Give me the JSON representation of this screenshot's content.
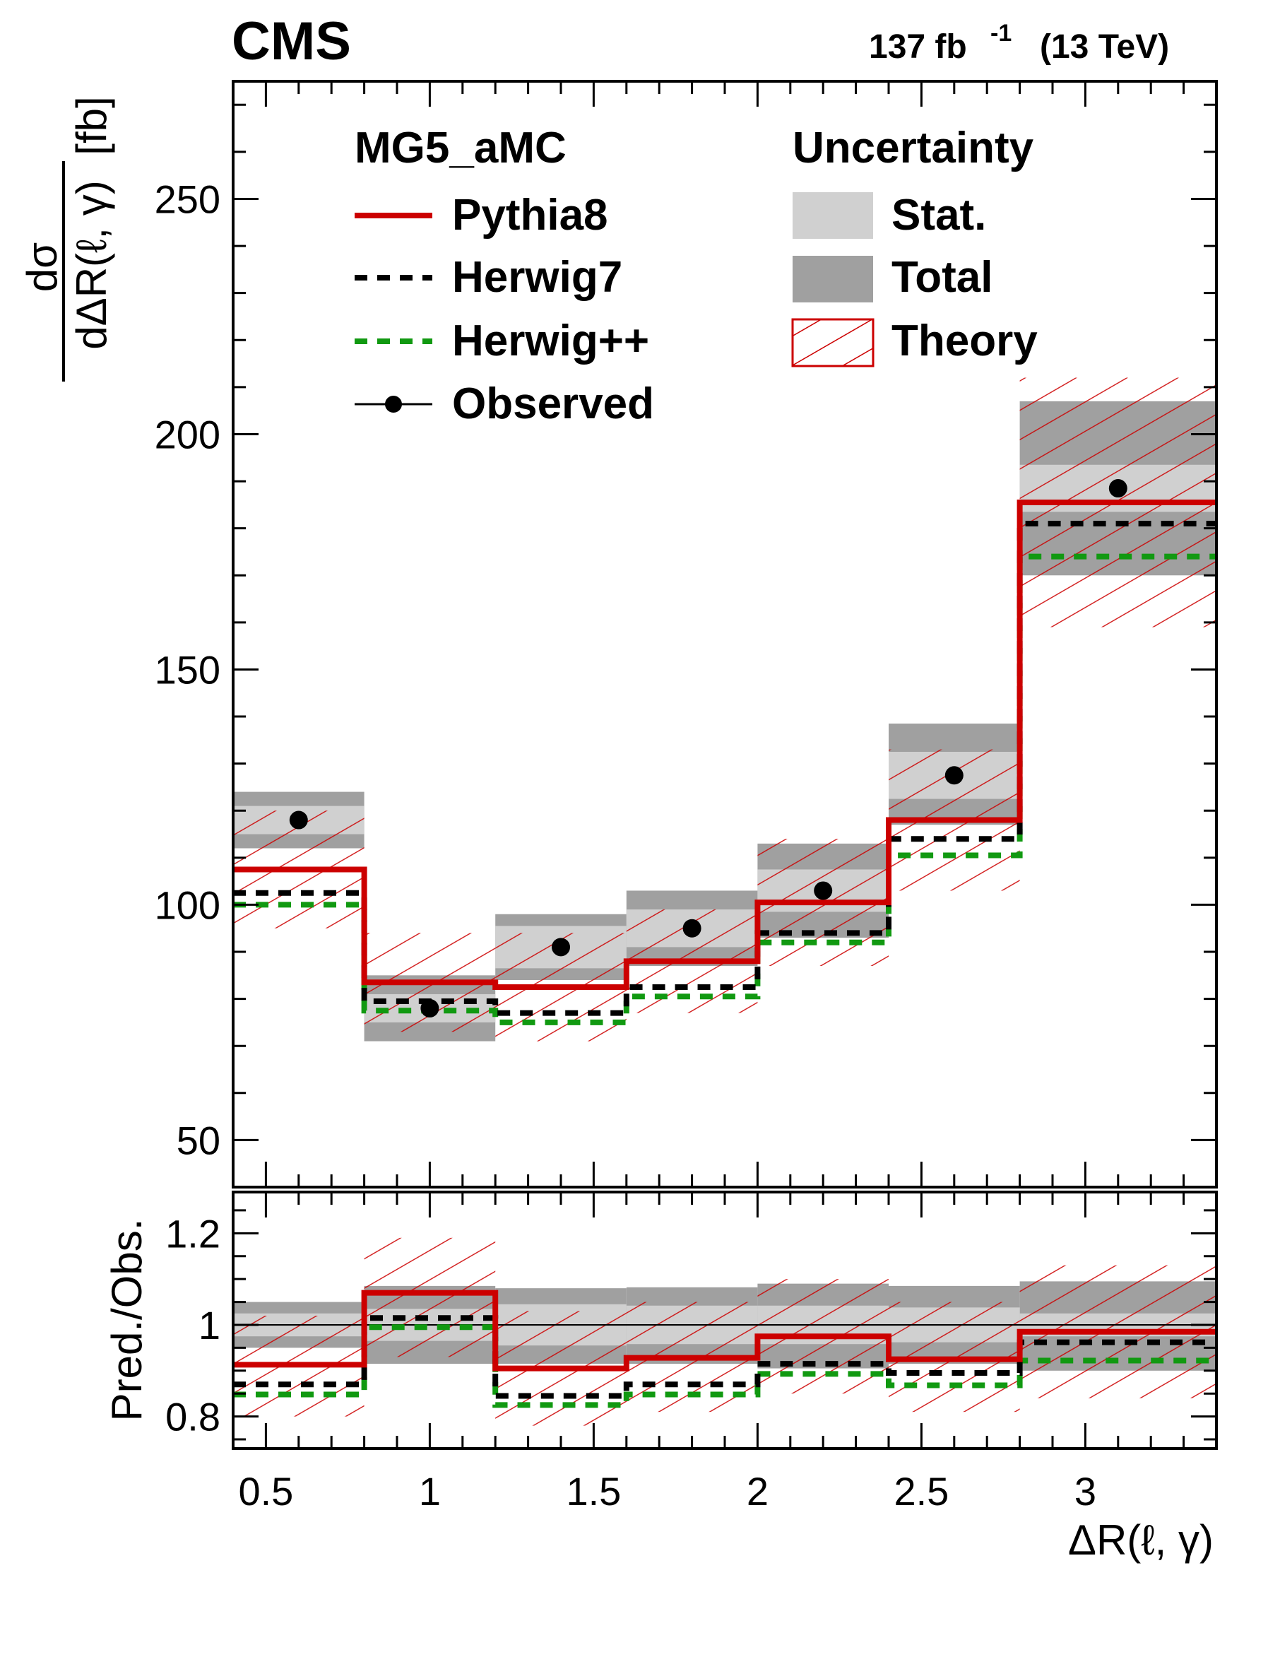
{
  "figure": {
    "experiment_label": "CMS",
    "lumi_label": "137 fb",
    "lumi_sup": "-1",
    "energy_label": "(13 TeV)"
  },
  "legend": {
    "generator_header": "MG5_aMC",
    "uncertainty_header": "Uncertainty",
    "entries": {
      "pythia": "Pythia8",
      "herwig7": "Herwig7",
      "herwigpp": "Herwig++",
      "observed": "Observed",
      "stat": "Stat.",
      "total": "Total",
      "theory": "Theory"
    }
  },
  "colors": {
    "pythia": "#cc0000",
    "herwig7": "#000000",
    "herwigpp": "#119911",
    "stat_band": "#d0d0d0",
    "total_band": "#a0a0a0",
    "theory_hatch": "#cc0000"
  },
  "chart_data": [
    {
      "type": "line",
      "panel": "main",
      "ylabel_numerator": "dσ",
      "ylabel_denominator": "dΔR(ℓ, γ)",
      "ylabel_unit": "[fb]",
      "xlim": [
        0.4,
        3.4
      ],
      "ylim": [
        40,
        275
      ],
      "yticks": [
        50,
        100,
        150,
        200,
        250
      ],
      "bin_edges": [
        0.4,
        0.8,
        1.2,
        1.6,
        2.0,
        2.4,
        2.8,
        3.4
      ],
      "observed": [
        118,
        78,
        91,
        95,
        103,
        127.5,
        188.5
      ],
      "stat_band": [
        [
          115,
          121
        ],
        [
          75,
          81
        ],
        [
          86.5,
          95.5
        ],
        [
          91,
          99
        ],
        [
          98.5,
          107.5
        ],
        [
          122.5,
          132.5
        ],
        [
          183.5,
          193.5
        ]
      ],
      "total_band": [
        [
          112,
          124
        ],
        [
          71,
          85
        ],
        [
          84,
          98
        ],
        [
          87,
          103
        ],
        [
          93,
          113
        ],
        [
          117,
          138.5
        ],
        [
          170,
          207
        ]
      ],
      "series": [
        {
          "name": "Pythia8",
          "style": "solid",
          "values": [
            107.5,
            83.5,
            82.5,
            88,
            100.5,
            118,
            185.5
          ],
          "theory_band": [
            [
              95,
              120
            ],
            [
              73,
              94
            ],
            [
              71,
              94
            ],
            [
              77,
              99
            ],
            [
              87,
              114
            ],
            [
              103,
              133
            ],
            [
              159,
              212
            ]
          ]
        },
        {
          "name": "Herwig7",
          "style": "dashed",
          "values": [
            102.5,
            79.5,
            77,
            82.5,
            94,
            114,
            181
          ]
        },
        {
          "name": "Herwig++",
          "style": "dashed",
          "values": [
            100,
            77.5,
            75,
            80.5,
            92,
            110.5,
            174
          ]
        }
      ]
    },
    {
      "type": "line",
      "panel": "ratio",
      "ylabel": "Pred./Obs.",
      "xlabel": "ΔR(ℓ, γ)",
      "xlim": [
        0.4,
        3.4
      ],
      "ylim": [
        0.73,
        1.29
      ],
      "yticks": [
        0.8,
        1,
        1.2
      ],
      "ytick_labels": [
        "0.8",
        "1",
        "1.2"
      ],
      "xticks": [
        0.5,
        1,
        1.5,
        2,
        2.5,
        3
      ],
      "xtick_labels": [
        "0.5",
        "1",
        "1.5",
        "2",
        "2.5",
        "3"
      ],
      "bin_edges": [
        0.4,
        0.8,
        1.2,
        1.6,
        2.0,
        2.4,
        2.8,
        3.4
      ],
      "stat_band": [
        [
          0.975,
          1.025
        ],
        [
          0.965,
          1.035
        ],
        [
          0.955,
          1.045
        ],
        [
          0.958,
          1.042
        ],
        [
          0.958,
          1.042
        ],
        [
          0.962,
          1.038
        ],
        [
          0.975,
          1.025
        ]
      ],
      "total_band": [
        [
          0.95,
          1.05
        ],
        [
          0.915,
          1.085
        ],
        [
          0.915,
          1.08
        ],
        [
          0.915,
          1.082
        ],
        [
          0.905,
          1.09
        ],
        [
          0.915,
          1.085
        ],
        [
          0.9,
          1.095
        ]
      ],
      "series": [
        {
          "name": "Pythia8",
          "style": "solid",
          "values": [
            0.913,
            1.07,
            0.905,
            0.928,
            0.975,
            0.925,
            0.985
          ],
          "theory_band": [
            [
              0.8,
              1.02
            ],
            [
              0.93,
              1.19
            ],
            [
              0.78,
              1.03
            ],
            [
              0.81,
              1.05
            ],
            [
              0.85,
              1.1
            ],
            [
              0.81,
              1.05
            ],
            [
              0.84,
              1.13
            ]
          ]
        },
        {
          "name": "Herwig7",
          "style": "dashed",
          "values": [
            0.87,
            1.015,
            0.845,
            0.87,
            0.915,
            0.895,
            0.962
          ]
        },
        {
          "name": "Herwig++",
          "style": "dashed",
          "values": [
            0.848,
            0.995,
            0.825,
            0.848,
            0.893,
            0.868,
            0.922
          ]
        }
      ]
    }
  ]
}
